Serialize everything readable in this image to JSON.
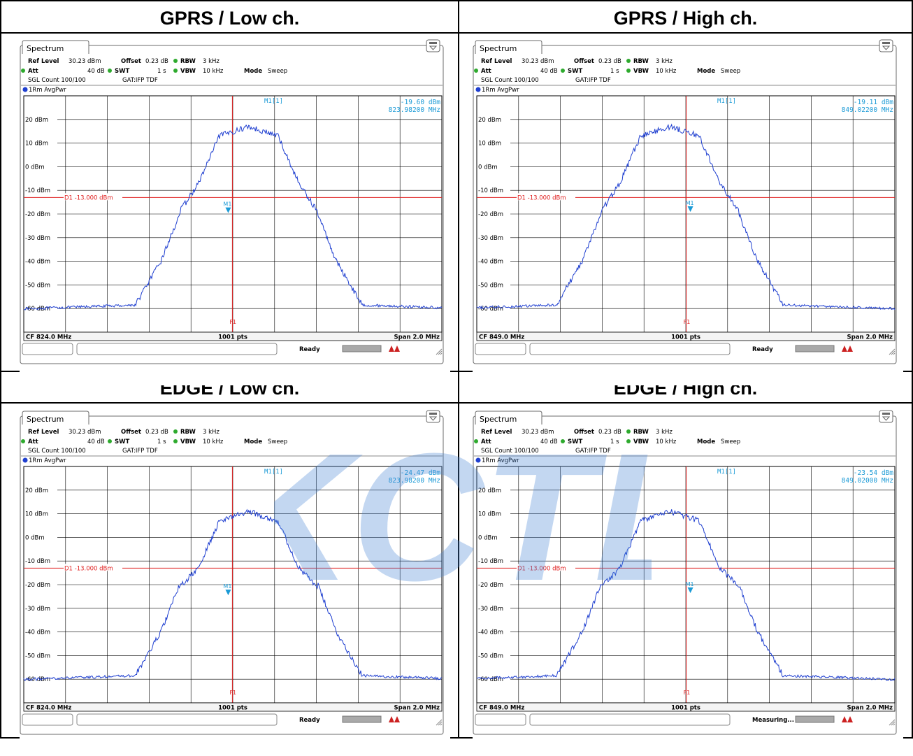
{
  "panels": [
    {
      "title": "GPRS / Low ch.",
      "marker_level": "-19.60 dBm",
      "marker_freq": "823.98200 MHz",
      "cf": "CF 824.0 MHz",
      "status": "Ready",
      "peak": 17,
      "marker_value": -19.6,
      "shoulder_left": -19.6,
      "shoulder_right": -19.5
    },
    {
      "title": "GPRS / High ch.",
      "marker_level": "-19.11 dBm",
      "marker_freq": "849.02200 MHz",
      "cf": "CF 849.0 MHz",
      "status": "Ready",
      "peak": 17,
      "marker_value": -19.11,
      "shoulder_left": -19.5,
      "shoulder_right": -19.11
    },
    {
      "title": "EDGE / Low ch.",
      "marker_level": "-24.47 dBm",
      "marker_freq": "823.98200 MHz",
      "cf": "CF 824.0 MHz",
      "status": "Ready",
      "peak": 11,
      "marker_value": -24.47,
      "shoulder_left": -24.47,
      "shoulder_right": -26
    },
    {
      "title": "EDGE / High ch.",
      "marker_level": "-23.54 dBm",
      "marker_freq": "849.02000 MHz",
      "cf": "CF 849.0 MHz",
      "status": "Measuring...",
      "peak": 11,
      "marker_value": -23.54,
      "shoulder_left": -26,
      "shoulder_right": -23.54
    }
  ],
  "common": {
    "app_title": "Spectrum",
    "ref_level_label": "Ref Level",
    "ref_level": "30.23 dBm",
    "offset_label": "Offset",
    "offset": "0.23 dB",
    "rbw_label": "RBW",
    "rbw": "3 kHz",
    "att_label": "Att",
    "att": "40 dB",
    "swt_label": "SWT",
    "swt": "1 s",
    "vbw_label": "VBW",
    "vbw": "10 kHz",
    "mode_label": "Mode",
    "mode": "Sweep",
    "sgl_count": "SGL Count 100/100",
    "gat": "GAT:IFP TDF",
    "trace_label": "1Rm AvgPwr",
    "marker_name": "M1[1]",
    "marker_tag": "M1",
    "d1_label": "D1  -13.000 dBm",
    "f1_label": "F1",
    "pts": "1001 pts",
    "span": "Span 2.0 MHz",
    "y_ticks": [
      "20 dBm",
      "10 dBm",
      "0 dBm",
      "-10 dBm",
      "-20 dBm",
      "-30 dBm",
      "-40 dBm",
      "-50 dBm",
      "-60 dBm"
    ],
    "watermark": "KCTL"
  },
  "chart_data": [
    {
      "type": "line",
      "title": "GPRS / Low ch.",
      "x_center_mhz": 824.0,
      "span_mhz": 2.0,
      "ylim": [
        -70,
        30
      ],
      "points": 1001,
      "display_line_dbm": -13.0,
      "marker": {
        "x_mhz": 823.982,
        "y_dbm": -19.6
      },
      "peak_dbm": 17,
      "floor_dbm": -60
    },
    {
      "type": "line",
      "title": "GPRS / High ch.",
      "x_center_mhz": 849.0,
      "span_mhz": 2.0,
      "ylim": [
        -70,
        30
      ],
      "points": 1001,
      "display_line_dbm": -13.0,
      "marker": {
        "x_mhz": 849.022,
        "y_dbm": -19.11
      },
      "peak_dbm": 17,
      "floor_dbm": -60
    },
    {
      "type": "line",
      "title": "EDGE / Low ch.",
      "x_center_mhz": 824.0,
      "span_mhz": 2.0,
      "ylim": [
        -70,
        30
      ],
      "points": 1001,
      "display_line_dbm": -13.0,
      "marker": {
        "x_mhz": 823.982,
        "y_dbm": -24.47
      },
      "peak_dbm": 11,
      "floor_dbm": -60
    },
    {
      "type": "line",
      "title": "EDGE / High ch.",
      "x_center_mhz": 849.0,
      "span_mhz": 2.0,
      "ylim": [
        -70,
        30
      ],
      "points": 1001,
      "display_line_dbm": -13.0,
      "marker": {
        "x_mhz": 849.02,
        "y_dbm": -23.54
      },
      "peak_dbm": 11,
      "floor_dbm": -60
    }
  ]
}
